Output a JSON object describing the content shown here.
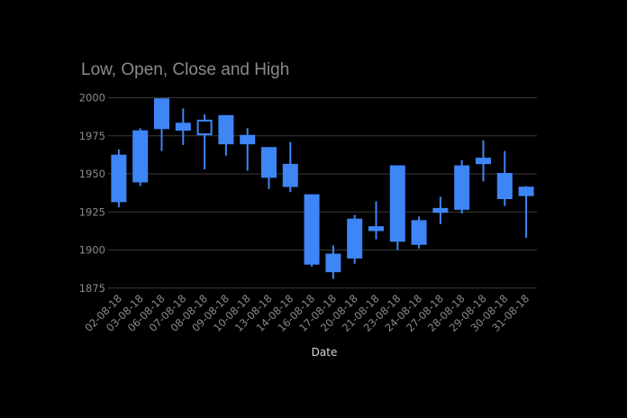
{
  "chart_data": {
    "type": "candlestick",
    "title": "Low, Open, Close and High",
    "xlabel": "Date",
    "ylabel": "",
    "ylim": [
      1870,
      2003
    ],
    "yticks": [
      "2000",
      "1975",
      "1950",
      "1925",
      "1900",
      "1875"
    ],
    "categories": [
      "02-08-18",
      "03-08-18",
      "06-08-18",
      "07-08-18",
      "08-08-18",
      "09-08-18",
      "10-08-18",
      "13-08-18",
      "14-08-18",
      "16-08-18",
      "17-08-18",
      "20-08-18",
      "21-08-18",
      "23-08-18",
      "24-08-18",
      "27-08-18",
      "28-08-18",
      "29-08-18",
      "30-08-18",
      "31-08-18"
    ],
    "series": [
      {
        "low": [
          1928,
          1942,
          1965,
          1969,
          1953,
          1962,
          1952,
          1940,
          1938,
          1889,
          1881,
          1891,
          1907,
          1900,
          1901,
          1917,
          1924,
          1945,
          1929,
          1908
        ],
        "open": [
          1932,
          1945,
          1980,
          1979,
          1985,
          1970,
          1970,
          1948,
          1942,
          1891,
          1886,
          1895,
          1913,
          1906,
          1904,
          1925,
          1927,
          1957,
          1934,
          1936
        ],
        "close": [
          1962,
          1978,
          1999,
          1983,
          1976,
          1988,
          1975,
          1967,
          1956,
          1936,
          1897,
          1920,
          1915,
          1955,
          1919,
          1927,
          1955,
          1960,
          1950,
          1941
        ],
        "high": [
          1966,
          1980,
          1999,
          1993,
          1989,
          1988,
          1980,
          1967,
          1971,
          1936,
          1903,
          1923,
          1932,
          1955,
          1922,
          1935,
          1959,
          1972,
          1965,
          1942
        ]
      }
    ],
    "colors": {
      "increasing": "#3e85f6",
      "decreasing": "#3e85f6",
      "grid": "#3a3a3a",
      "text": "#8a8a8a",
      "background": "#000000"
    },
    "grid": true
  }
}
